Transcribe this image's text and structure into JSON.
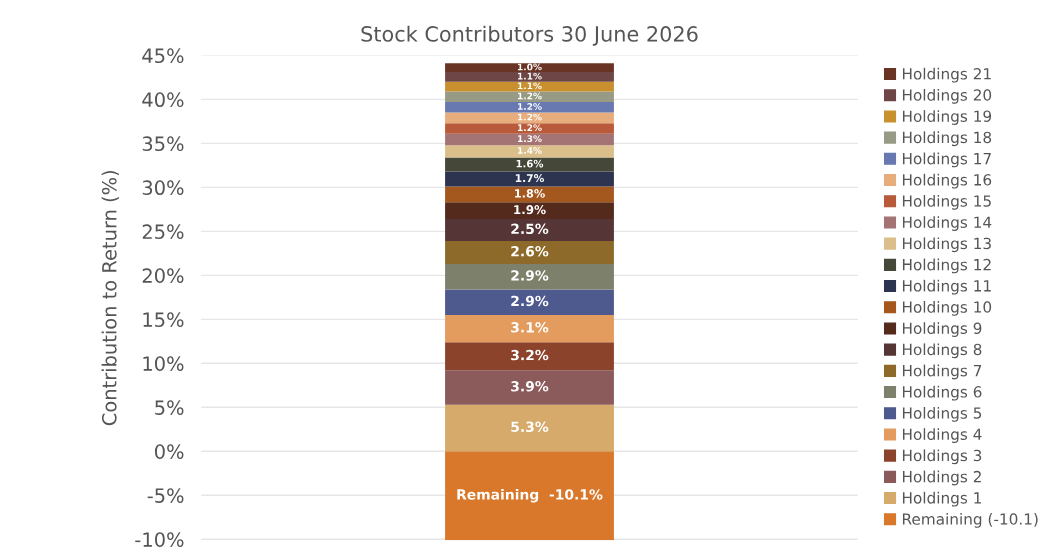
{
  "chart_data": {
    "type": "bar",
    "title": "Stock Contributors 30 June 2026",
    "ylabel": "Contribution to Return (%)",
    "categories": [
      null
    ],
    "stacked": true,
    "grid": "y",
    "legend": "right",
    "ylim": [
      -10.1,
      45
    ],
    "yticks": [
      {
        "value": -10,
        "label": "-10%"
      },
      {
        "value": -5,
        "label": "-5%"
      },
      {
        "value": 0,
        "label": "0%"
      },
      {
        "value": 5,
        "label": "5%"
      },
      {
        "value": 10,
        "label": "10%"
      },
      {
        "value": 15,
        "label": "15%"
      },
      {
        "value": 20,
        "label": "20%"
      },
      {
        "value": 25,
        "label": "25%"
      },
      {
        "value": 30,
        "label": "30%"
      },
      {
        "value": 35,
        "label": "35%"
      },
      {
        "value": 40,
        "label": "40%"
      },
      {
        "value": 45,
        "label": "45%"
      }
    ],
    "series": [
      {
        "name": "Remaining (-10.1)",
        "color": "#d9782a",
        "values": [
          -10.1
        ],
        "value_labels": [
          "Remaining  -10.1%"
        ]
      },
      {
        "name": "Holdings 1",
        "color": "#d6aa6b",
        "values": [
          5.3
        ],
        "value_labels": [
          "5.3%"
        ]
      },
      {
        "name": "Holdings 2",
        "color": "#8b5a5a",
        "values": [
          3.9
        ],
        "value_labels": [
          "3.9%"
        ]
      },
      {
        "name": "Holdings 3",
        "color": "#8b432b",
        "values": [
          3.2
        ],
        "value_labels": [
          "3.2%"
        ]
      },
      {
        "name": "Holdings 4",
        "color": "#e39b5e",
        "values": [
          3.1
        ],
        "value_labels": [
          "3.1%"
        ]
      },
      {
        "name": "Holdings 5",
        "color": "#4e5a8e",
        "values": [
          2.9
        ],
        "value_labels": [
          "2.9%"
        ]
      },
      {
        "name": "Holdings 6",
        "color": "#7d806a",
        "values": [
          2.9
        ],
        "value_labels": [
          "2.9%"
        ]
      },
      {
        "name": "Holdings 7",
        "color": "#8e6a2a",
        "values": [
          2.6
        ],
        "value_labels": [
          "2.6%"
        ]
      },
      {
        "name": "Holdings 8",
        "color": "#553535",
        "values": [
          2.5
        ],
        "value_labels": [
          "2.5%"
        ]
      },
      {
        "name": "Holdings 9",
        "color": "#532a1c",
        "values": [
          1.9
        ],
        "value_labels": [
          "1.9%"
        ]
      },
      {
        "name": "Holdings 10",
        "color": "#a5581e",
        "values": [
          1.8
        ],
        "value_labels": [
          "1.8%"
        ]
      },
      {
        "name": "Holdings 11",
        "color": "#2c3450",
        "values": [
          1.7
        ],
        "value_labels": [
          "1.7%"
        ]
      },
      {
        "name": "Holdings 12",
        "color": "#454838",
        "values": [
          1.6
        ],
        "value_labels": [
          "1.6%"
        ]
      },
      {
        "name": "Holdings 13",
        "color": "#dbbf8a",
        "values": [
          1.4
        ],
        "value_labels": [
          "1.4%"
        ]
      },
      {
        "name": "Holdings 14",
        "color": "#a47474",
        "values": [
          1.3
        ],
        "value_labels": [
          "1.3%"
        ]
      },
      {
        "name": "Holdings 15",
        "color": "#b95a3a",
        "values": [
          1.2
        ],
        "value_labels": [
          "1.2%"
        ]
      },
      {
        "name": "Holdings 16",
        "color": "#e8ad7c",
        "values": [
          1.2
        ],
        "value_labels": [
          "1.2%"
        ]
      },
      {
        "name": "Holdings 17",
        "color": "#6878b0",
        "values": [
          1.2
        ],
        "value_labels": [
          "1.2%"
        ]
      },
      {
        "name": "Holdings 18",
        "color": "#979a84",
        "values": [
          1.2
        ],
        "value_labels": [
          "1.2%"
        ]
      },
      {
        "name": "Holdings 19",
        "color": "#c9902f",
        "values": [
          1.1
        ],
        "value_labels": [
          "1.1%"
        ]
      },
      {
        "name": "Holdings 20",
        "color": "#6e4646",
        "values": [
          1.1
        ],
        "value_labels": [
          "1.1%"
        ]
      },
      {
        "name": "Holdings 21",
        "color": "#6a3424",
        "values": [
          1.0
        ],
        "value_labels": [
          "1.0%"
        ]
      }
    ]
  }
}
